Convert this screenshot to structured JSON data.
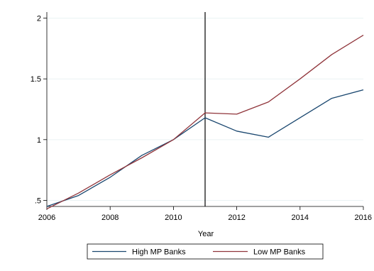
{
  "chart_data": {
    "type": "line",
    "title": "",
    "xlabel": "Year",
    "ylabel": "",
    "x": [
      2006,
      2007,
      2008,
      2009,
      2010,
      2011,
      2012,
      2013,
      2014,
      2015,
      2016
    ],
    "xlim": [
      2006,
      2016
    ],
    "ylim": [
      0.45,
      2.05
    ],
    "xticks": [
      2006,
      2008,
      2010,
      2012,
      2014,
      2016
    ],
    "yticks": [
      0.5,
      1,
      1.5,
      2
    ],
    "ytick_labels": [
      ".5",
      "1",
      "1.5",
      "2"
    ],
    "grid": true,
    "vline": 2011,
    "legend_position": "bottom",
    "series": [
      {
        "name": "High MP Banks",
        "color": "#1a476f",
        "values": [
          0.45,
          0.54,
          0.69,
          0.87,
          1.0,
          1.18,
          1.07,
          1.02,
          1.18,
          1.34,
          1.41
        ]
      },
      {
        "name": "Low MP Banks",
        "color": "#90353b",
        "values": [
          0.43,
          0.56,
          0.71,
          0.85,
          1.0,
          1.22,
          1.21,
          1.31,
          1.5,
          1.7,
          1.86
        ]
      }
    ]
  }
}
